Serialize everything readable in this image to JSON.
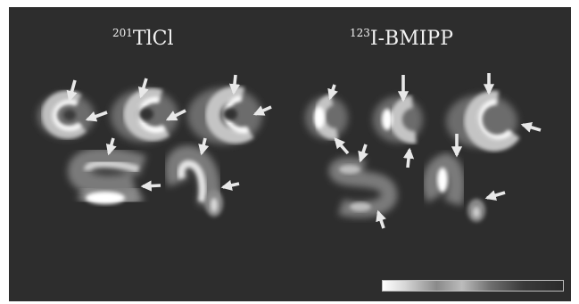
{
  "titles": {
    "left_superscript": "201",
    "left_text": "TlCl",
    "right_superscript": "123",
    "right_text": "I-BMIPP"
  },
  "colors": {
    "background": "#2d2d2d",
    "arrow": "#e8e8e8",
    "uptake_high": "#ffffff",
    "uptake_low": "#6a6a6a"
  },
  "colorbar": {
    "orientation": "horizontal",
    "gradient": "white-to-dark"
  }
}
